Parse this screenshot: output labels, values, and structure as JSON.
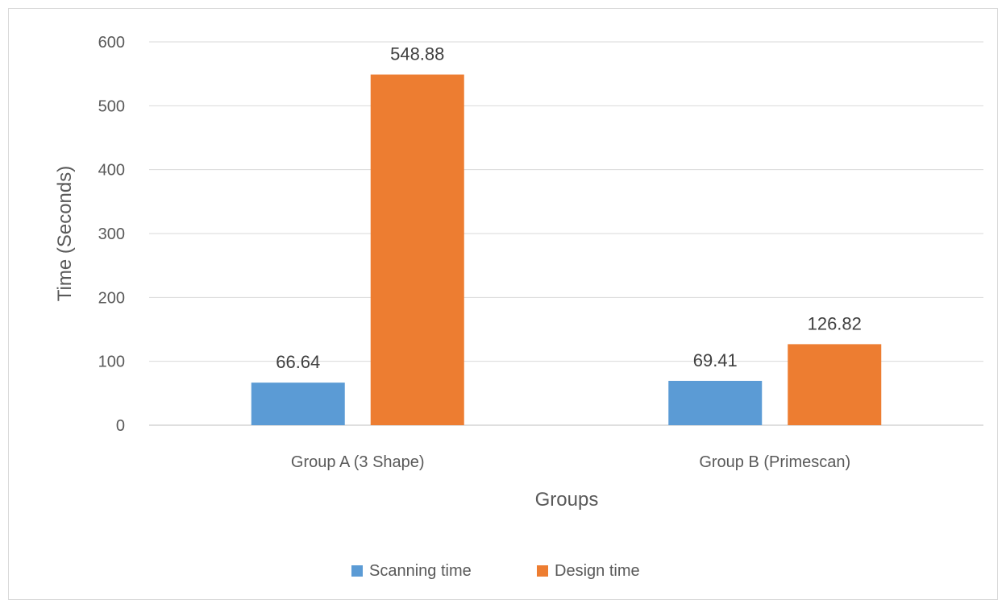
{
  "chart_data": {
    "type": "bar",
    "title": "",
    "xlabel": "Groups",
    "ylabel": "Time (Seconds)",
    "categories": [
      "Group A (3 Shape)",
      "Group B (Primescan)"
    ],
    "series": [
      {
        "name": "Scanning time",
        "values": [
          66.64,
          69.41
        ],
        "color": "#5b9bd5"
      },
      {
        "name": "Design time",
        "values": [
          548.88,
          126.82
        ],
        "color": "#ed7d31"
      }
    ],
    "value_labels": [
      [
        "66.64",
        "69.41"
      ],
      [
        "548.88",
        "126.82"
      ]
    ],
    "ylim": [
      0,
      600
    ],
    "yticks": [
      0,
      100,
      200,
      300,
      400,
      500,
      600
    ],
    "grid": true,
    "legend_position": "bottom"
  }
}
